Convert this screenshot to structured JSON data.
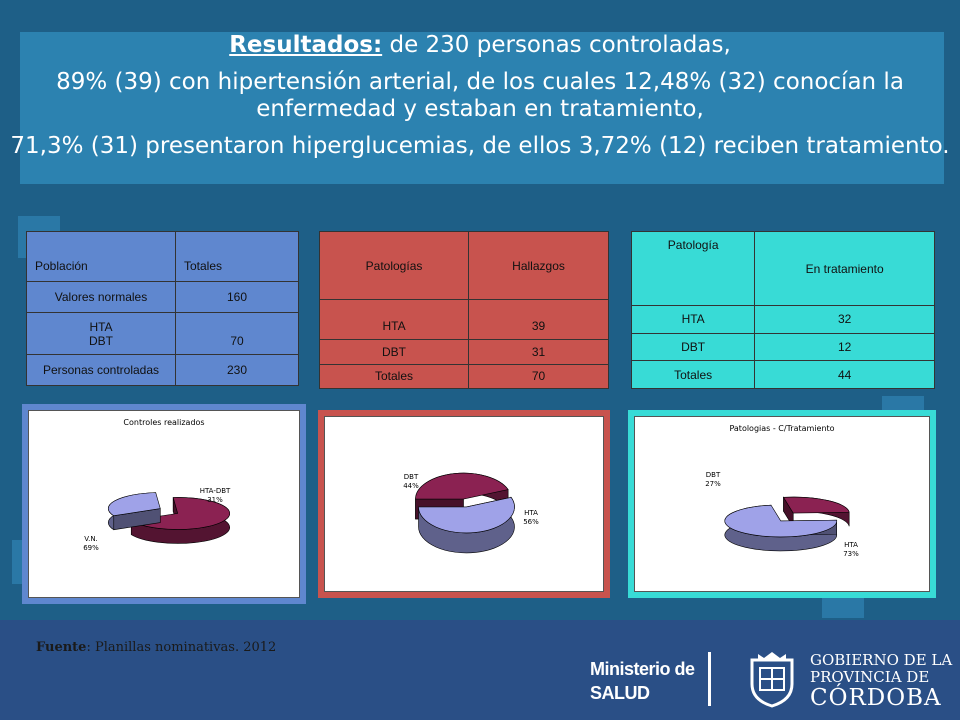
{
  "headline": {
    "lead": "Resultados:",
    "line1_rest": " de 230 personas controladas,",
    "line2": "89% (39) con hipertensión arterial, de los cuales 12,48% (32) conocían la enfermedad y estaban en tratamiento,",
    "line3": "71,3% (31) presentaron hiperglucemias, de ellos 3,72% (12) reciben tratamiento."
  },
  "table1": {
    "headers": [
      "Población",
      "Totales"
    ],
    "rows": [
      [
        "Valores normales",
        "160"
      ],
      [
        "HTA\nDBT",
        "70"
      ],
      [
        "Personas controladas",
        "230"
      ]
    ]
  },
  "table2": {
    "headers": [
      "Patologías",
      "Hallazgos"
    ],
    "rows": [
      [
        "HTA",
        "39"
      ],
      [
        "DBT",
        "31"
      ],
      [
        "Totales",
        "70"
      ]
    ]
  },
  "table3": {
    "headers": [
      "Patología",
      "En tratamiento"
    ],
    "rows": [
      [
        "HTA",
        "32"
      ],
      [
        "DBT",
        "12"
      ],
      [
        "Totales",
        "44"
      ]
    ]
  },
  "chart_data": [
    {
      "type": "pie",
      "title": "Controles realizados",
      "slices": [
        {
          "label": "V.N.",
          "pct_label": "69%",
          "value": 69,
          "color": "#8b2252"
        },
        {
          "label": "HTA-DBT",
          "pct_label": "31%",
          "value": 31,
          "color": "#9fa2e8"
        }
      ]
    },
    {
      "type": "pie",
      "title": "",
      "slices": [
        {
          "label": "DBT",
          "pct_label": "44%",
          "value": 44,
          "color": "#8b2252"
        },
        {
          "label": "HTA",
          "pct_label": "56%",
          "value": 56,
          "color": "#9fa2e8"
        }
      ]
    },
    {
      "type": "pie",
      "title": "Patologias - C/Tratamiento",
      "slices": [
        {
          "label": "DBT",
          "pct_label": "27%",
          "value": 27,
          "color": "#8b2252"
        },
        {
          "label": "HTA",
          "pct_label": "73%",
          "value": 73,
          "color": "#9fa2e8"
        }
      ]
    }
  ],
  "source": {
    "label": "Fuente",
    "text": ": Planillas nominativas. 2012"
  },
  "logos": {
    "ministerio_line1": "Ministerio de",
    "ministerio_line2": "SALUD",
    "gob_line1": "GOBIERNO DE LA",
    "gob_line2": "PROVINCIA DE",
    "gob_line3": "CÓRDOBA"
  },
  "colors": {
    "background": "#1e5f87",
    "banner": "#2c82b0",
    "table1": "#5f87cf",
    "table2": "#c8534e",
    "table3": "#38dbd6",
    "footer": "#2a4f86"
  }
}
